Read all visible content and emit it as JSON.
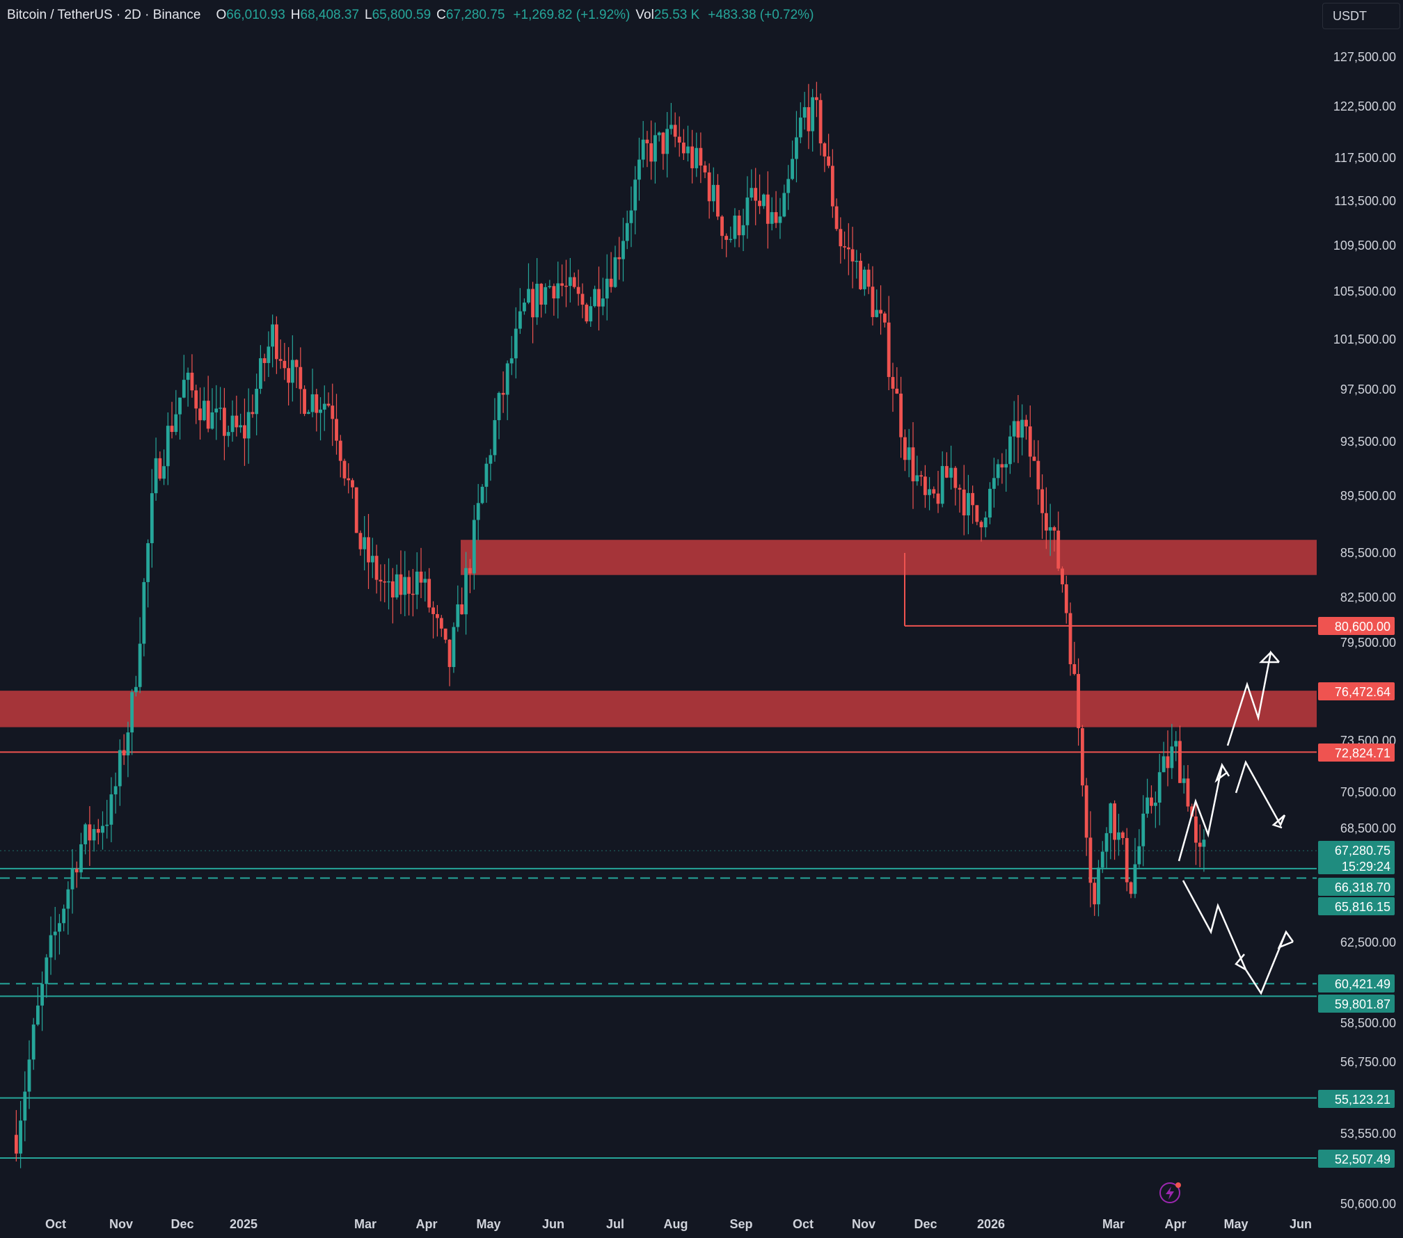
{
  "header": {
    "symbol": "Bitcoin / TetherUS · 2D · Binance",
    "o_label": "O",
    "o_value": "66,010.93",
    "h_label": "H",
    "h_value": "68,408.37",
    "l_label": "L",
    "l_value": "65,800.59",
    "c_label": "C",
    "c_value": "67,280.75",
    "change": "+1,269.82 (+1.92%)",
    "vol_label": "Vol",
    "vol_value": "25.53 K",
    "vol_change": "+483.38 (+0.72%)"
  },
  "currency_button": "USDT",
  "icons": {
    "alert": "lightning-icon"
  },
  "colors": {
    "background": "#131722",
    "up": "#26a69a",
    "down": "#ef5350",
    "zone": "#b2373c",
    "arrow": "#ffffff"
  },
  "chart_data": {
    "type": "candlestick",
    "title": "Bitcoin / TetherUS · 2D · Binance",
    "price_axis_ticks": [
      "127,500.00",
      "122,500.00",
      "117,500.00",
      "113,500.00",
      "109,500.00",
      "105,500.00",
      "101,500.00",
      "97,500.00",
      "93,500.00",
      "89,500.00",
      "85,500.00",
      "82,500.00",
      "79,500.00",
      "73,500.00",
      "70,500.00",
      "68,500.00",
      "62,500.00",
      "58,500.00",
      "56,750.00",
      "53,550.00",
      "50,600.00"
    ],
    "time_axis_labels": [
      "Oct",
      "Nov",
      "Dec",
      "2025",
      "Mar",
      "Apr",
      "May",
      "Jun",
      "Jul",
      "Aug",
      "Sep",
      "Oct",
      "Nov",
      "Dec",
      "2026",
      "Mar",
      "Apr",
      "May",
      "Jun"
    ],
    "price_tags": [
      {
        "label": "80,600.00",
        "color": "red"
      },
      {
        "label": "76,472.64",
        "color": "red"
      },
      {
        "label": "72,824.71",
        "color": "red"
      },
      {
        "label": "67,280.75",
        "sublabel": "15:29:24",
        "color": "green"
      },
      {
        "label": "66,318.70",
        "color": "green"
      },
      {
        "label": "65,816.15",
        "color": "green"
      },
      {
        "label": "60,421.49",
        "color": "green"
      },
      {
        "label": "59,801.87",
        "color": "green"
      },
      {
        "label": "55,123.21",
        "color": "green"
      },
      {
        "label": "52,507.49",
        "color": "green"
      }
    ],
    "resistance_zones": [
      {
        "from": 84000,
        "to": 86400,
        "start_month": "Apr"
      },
      {
        "from": 74300,
        "to": 76500,
        "start_month": "start"
      }
    ],
    "horizontal_levels": [
      {
        "price": 80600,
        "style": "solid",
        "color": "red"
      },
      {
        "price": 72824.71,
        "style": "solid",
        "color": "red"
      },
      {
        "price": 67280.75,
        "style": "dotted",
        "color": "green"
      },
      {
        "price": 66318.7,
        "style": "solid",
        "color": "green"
      },
      {
        "price": 65816.15,
        "style": "dashed",
        "color": "green"
      },
      {
        "price": 60421.49,
        "style": "dashed",
        "color": "green"
      },
      {
        "price": 59801.87,
        "style": "solid",
        "color": "green"
      },
      {
        "price": 55123.21,
        "style": "solid",
        "color": "green"
      },
      {
        "price": 52507.49,
        "style": "solid",
        "color": "green"
      }
    ],
    "price_path": [
      [
        2024.7,
        53500
      ],
      [
        2024.74,
        61500
      ],
      [
        2024.78,
        67500
      ],
      [
        2024.82,
        69500
      ],
      [
        2024.85,
        76000
      ],
      [
        2024.88,
        91000
      ],
      [
        2024.92,
        98000
      ],
      [
        2024.96,
        95000
      ],
      [
        2025.0,
        94000
      ],
      [
        2025.04,
        102000
      ],
      [
        2025.08,
        97000
      ],
      [
        2025.12,
        96500
      ],
      [
        2025.16,
        86000
      ],
      [
        2025.2,
        82500
      ],
      [
        2025.24,
        84000
      ],
      [
        2025.28,
        78000
      ],
      [
        2025.31,
        85500
      ],
      [
        2025.34,
        94500
      ],
      [
        2025.38,
        104000
      ],
      [
        2025.42,
        106500
      ],
      [
        2025.46,
        104000
      ],
      [
        2025.5,
        108000
      ],
      [
        2025.54,
        118000
      ],
      [
        2025.58,
        119500
      ],
      [
        2025.62,
        116000
      ],
      [
        2025.65,
        110000
      ],
      [
        2025.68,
        113500
      ],
      [
        2025.72,
        111000
      ],
      [
        2025.75,
        122000
      ],
      [
        2025.77,
        121500
      ],
      [
        2025.8,
        110000
      ],
      [
        2025.83,
        107000
      ],
      [
        2025.86,
        102000
      ],
      [
        2025.89,
        93000
      ],
      [
        2025.92,
        88500
      ],
      [
        2025.95,
        91500
      ],
      [
        2025.98,
        87500
      ],
      [
        2026.02,
        92000
      ],
      [
        2026.04,
        95000
      ],
      [
        2026.07,
        89500
      ],
      [
        2026.1,
        83000
      ],
      [
        2026.12,
        74000
      ],
      [
        2026.14,
        64000
      ],
      [
        2026.16,
        70000
      ],
      [
        2026.19,
        65500
      ],
      [
        2026.21,
        69000
      ],
      [
        2026.23,
        71500
      ],
      [
        2026.25,
        73000
      ],
      [
        2026.27,
        70000
      ],
      [
        2026.28,
        66500
      ],
      [
        2026.29,
        67280.75
      ]
    ],
    "projection_arrows": [
      "bullish path up to ~80,000",
      "pullback to ~68,500",
      "bearish path down to ~59,500 then rebound ~62,500"
    ]
  }
}
